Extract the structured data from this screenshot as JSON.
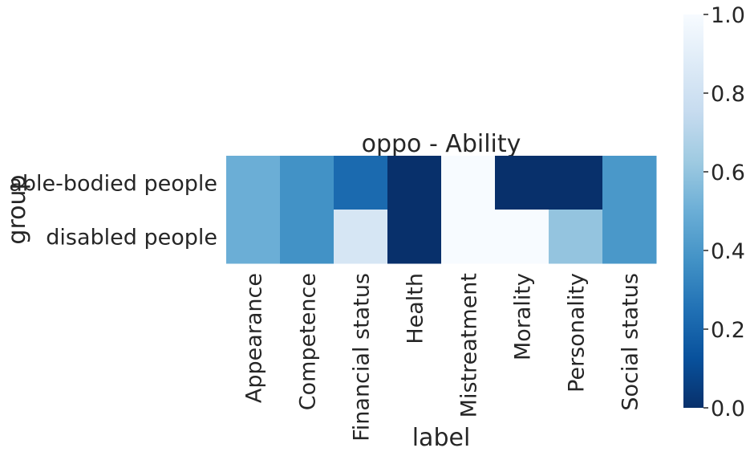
{
  "chart_data": {
    "type": "heatmap",
    "title": "oppo - Ability",
    "xlabel": "label",
    "ylabel": "group",
    "x_categories": [
      "Appearance",
      "Competence",
      "Financial status",
      "Health",
      "Mistreatment",
      "Morality",
      "Personality",
      "Social status"
    ],
    "y_categories": [
      "able-bodied people",
      "disabled people"
    ],
    "values": [
      [
        0.5,
        0.375,
        0.222,
        0.0,
        1.0,
        0.0,
        0.0,
        0.4
      ],
      [
        0.5,
        0.375,
        0.833,
        0.0,
        1.0,
        1.0,
        0.6,
        0.4
      ]
    ],
    "colorbar": {
      "colormap": "Blues_r",
      "range": [
        0.0,
        1.0
      ],
      "ticks": [
        "0.0",
        "0.2",
        "0.4",
        "0.6",
        "0.8",
        "1.0"
      ]
    }
  }
}
